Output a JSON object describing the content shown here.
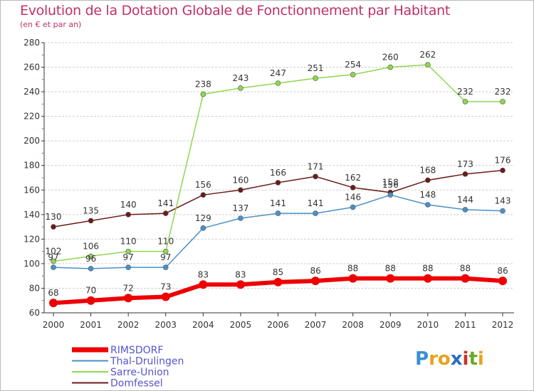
{
  "header": {
    "title": "Evolution de la Dotation Globale de Fonctionnement par Habitant",
    "subtitle": "(en € et par an)"
  },
  "logo": {
    "text": "Proxiti",
    "letter_colors": [
      "#3a8fd6",
      "#e8a21c",
      "#e8a21c",
      "#2a6cc7",
      "#c9332c",
      "#6aa92d",
      "#e8a21c"
    ]
  },
  "colors": {
    "title": "#c0306a",
    "legend_text": "#5555cc",
    "axis": "#333333",
    "grid": "#cfcfcf"
  },
  "chart_data": {
    "type": "line",
    "x": [
      "2000",
      "2001",
      "2002",
      "2003",
      "2004",
      "2005",
      "2006",
      "2007",
      "2008",
      "2009",
      "2010",
      "2011",
      "2012"
    ],
    "ylim": [
      60,
      280
    ],
    "yticks": [
      "60",
      "80",
      "100",
      "120",
      "140",
      "160",
      "180",
      "200",
      "220",
      "240",
      "260",
      "280"
    ],
    "grid": "horizontal",
    "legend_position": "bottom-left",
    "series": [
      {
        "name": "RIMSDORF",
        "color": "#ee0000",
        "values": [
          68,
          70,
          72,
          73,
          83,
          83,
          85,
          86,
          88,
          88,
          88,
          88,
          86
        ]
      },
      {
        "name": "Thal-Drulingen",
        "color": "#4a90c8",
        "values": [
          97,
          96,
          97,
          97,
          129,
          137,
          141,
          141,
          146,
          156,
          148,
          144,
          143
        ]
      },
      {
        "name": "Sarre-Union",
        "color": "#8fd650",
        "values": [
          102,
          106,
          110,
          110,
          238,
          243,
          247,
          251,
          254,
          260,
          262,
          232,
          232
        ]
      },
      {
        "name": "Domfessel",
        "color": "#6b1a1a",
        "values": [
          130,
          135,
          140,
          141,
          156,
          160,
          166,
          171,
          162,
          158,
          168,
          173,
          176
        ]
      }
    ]
  }
}
